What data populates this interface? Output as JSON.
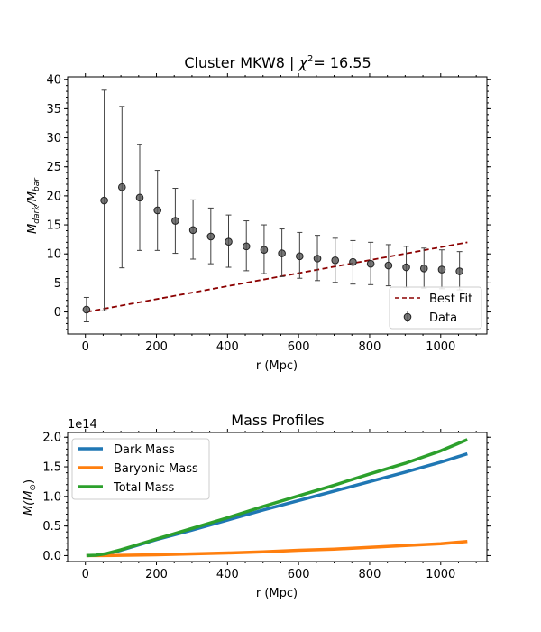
{
  "chart_data": [
    {
      "type": "scatter",
      "title": "Cluster MKW8 | χ²= 16.55",
      "title_prefix": "Cluster MKW8 | ",
      "title_chi": "χ",
      "title_sup": "2",
      "title_suffix": "= 16.55",
      "xlabel": "r (Mpc)",
      "ylabel_main": "M",
      "ylabel_sub1": "dark",
      "ylabel_sep": "/M",
      "ylabel_sub2": "bar",
      "xlim": [
        -50,
        1130
      ],
      "ylim": [
        -3.8,
        40.5
      ],
      "xticks": [
        0,
        200,
        400,
        600,
        800,
        1000
      ],
      "yticks": [
        0,
        5,
        10,
        15,
        20,
        25,
        30,
        35,
        40
      ],
      "grid": false,
      "legend_position": "lower-right",
      "series": [
        {
          "name": "Data",
          "kind": "errorbar",
          "color": "#404040",
          "x": [
            3,
            53,
            103,
            153,
            203,
            253,
            303,
            353,
            403,
            453,
            503,
            553,
            603,
            653,
            703,
            753,
            803,
            853,
            903,
            953,
            1003,
            1053
          ],
          "y": [
            0.4,
            19.2,
            21.5,
            19.7,
            17.5,
            15.7,
            14.1,
            13.0,
            12.1,
            11.3,
            10.7,
            10.1,
            9.6,
            9.2,
            8.9,
            8.6,
            8.3,
            8.0,
            7.7,
            7.5,
            7.3,
            7.0
          ],
          "yerr_low": [
            2.1,
            19.0,
            13.9,
            9.1,
            6.9,
            5.6,
            5.0,
            4.7,
            4.4,
            4.2,
            4.1,
            4.0,
            3.8,
            3.8,
            3.8,
            3.8,
            3.6,
            3.5,
            3.5,
            3.4,
            3.3,
            3.2
          ],
          "yerr_high": [
            2.1,
            19.0,
            13.9,
            9.1,
            6.9,
            5.6,
            5.2,
            4.9,
            4.6,
            4.4,
            4.3,
            4.2,
            4.1,
            4.0,
            3.8,
            3.7,
            3.7,
            3.6,
            3.6,
            3.5,
            3.4,
            3.4
          ]
        },
        {
          "name": "Best Fit",
          "kind": "line",
          "style": "dashed",
          "color": "#8b0000",
          "x": [
            3,
            1075
          ],
          "y": [
            0.0,
            12.0
          ]
        }
      ]
    },
    {
      "type": "line",
      "title": "Mass Profiles",
      "xlabel": "r (Mpc)",
      "ylabel_main": "M(M",
      "ylabel_sub": "⊙",
      "ylabel_close": ")",
      "offset_text": "1e14",
      "xlim": [
        -50,
        1130
      ],
      "ylim": [
        -0.1,
        2.08
      ],
      "xticks": [
        0,
        200,
        400,
        600,
        800,
        1000
      ],
      "yticks": [
        0.0,
        0.5,
        1.0,
        1.5,
        2.0
      ],
      "yticklabels": [
        "0.0",
        "0.5",
        "1.0",
        "1.5",
        "2.0"
      ],
      "grid": false,
      "legend_position": "upper-left",
      "series": [
        {
          "name": "Dark Mass",
          "color": "#1f77b4",
          "x": [
            3,
            30,
            60,
            100,
            150,
            200,
            300,
            400,
            500,
            600,
            700,
            800,
            900,
            1000,
            1075
          ],
          "y": [
            0.0,
            0.005,
            0.03,
            0.09,
            0.18,
            0.27,
            0.43,
            0.6,
            0.77,
            0.93,
            1.09,
            1.25,
            1.41,
            1.58,
            1.72
          ]
        },
        {
          "name": "Baryonic Mass",
          "color": "#ff7f0e",
          "x": [
            3,
            50,
            100,
            200,
            300,
            400,
            500,
            600,
            700,
            800,
            900,
            1000,
            1075
          ],
          "y": [
            0.0,
            0.001,
            0.005,
            0.015,
            0.03,
            0.045,
            0.065,
            0.09,
            0.11,
            0.14,
            0.17,
            0.2,
            0.24
          ]
        },
        {
          "name": "Total Mass",
          "color": "#2ca02c",
          "x": [
            3,
            30,
            60,
            100,
            150,
            200,
            300,
            400,
            500,
            600,
            700,
            800,
            900,
            1000,
            1075
          ],
          "y": [
            0.0,
            0.006,
            0.035,
            0.1,
            0.19,
            0.28,
            0.46,
            0.64,
            0.83,
            1.01,
            1.19,
            1.38,
            1.56,
            1.77,
            1.96
          ]
        }
      ]
    }
  ]
}
